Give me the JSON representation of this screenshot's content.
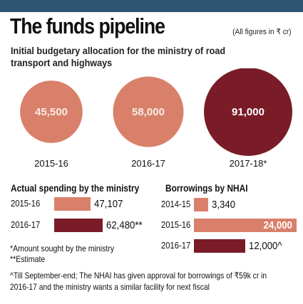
{
  "header": {
    "title": "The funds pipeline",
    "units": "(All figures in ₹ cr)"
  },
  "colors": {
    "header_bar": "#2f5672",
    "light_bar": "#d9806a",
    "dark_bar": "#7a1b28"
  },
  "chart_data": [
    {
      "type": "bubble",
      "title": "Initial budgetary allocation for the ministry of road transport and highways",
      "categories": [
        "2015-16",
        "2016-17",
        "2017-18*"
      ],
      "values": [
        45500,
        58000,
        91000
      ],
      "value_labels": [
        "45,500",
        "58,000",
        "91,000"
      ]
    },
    {
      "type": "bar",
      "title": "Actual spending by the ministry",
      "categories": [
        "2015-16",
        "2016-17"
      ],
      "values": [
        47107,
        62480
      ],
      "value_labels": [
        "47,107",
        "62,480**"
      ]
    },
    {
      "type": "bar",
      "title": "Borrowings by NHAI",
      "categories": [
        "2014-15",
        "2015-16",
        "2016-17"
      ],
      "values": [
        3340,
        24000,
        12000
      ],
      "value_labels": [
        "3,340",
        "24,000",
        "12,000^"
      ]
    }
  ],
  "notes": {
    "amount_sought": "*Amount sought by the ministry",
    "estimate": "**Estimate",
    "footnote": "^Till September-end; The NHAI has given approval for borrowings of ₹59k cr in 2016-17 and the ministry wants a similar facility for next fiscal"
  }
}
